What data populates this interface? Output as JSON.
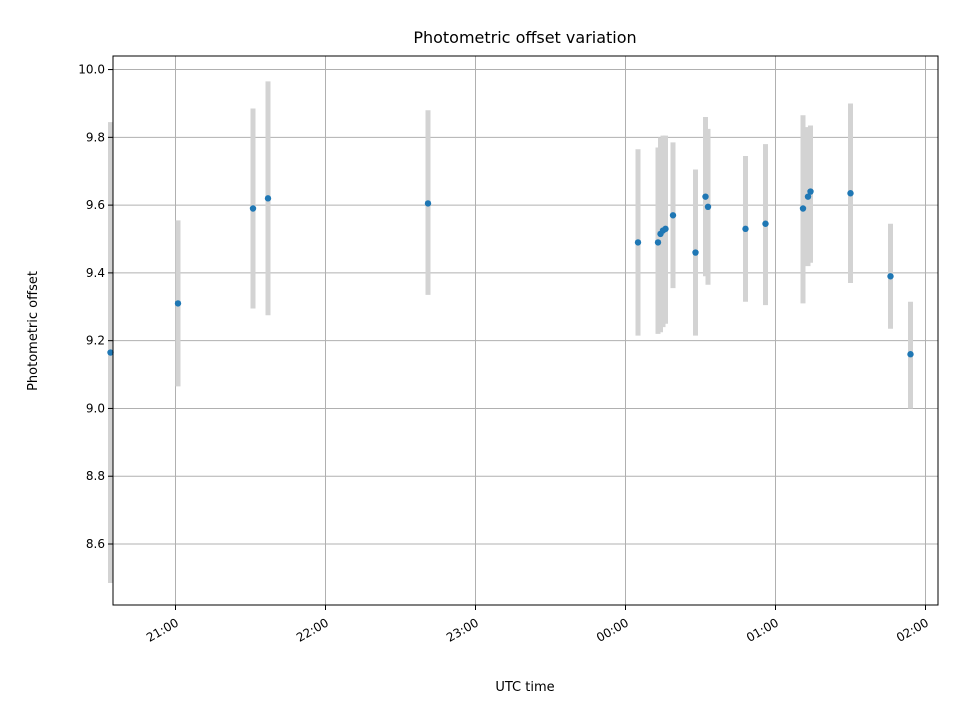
{
  "chart_data": {
    "type": "scatter",
    "title": "Photometric offset variation",
    "xlabel": "UTC time",
    "ylabel": "Photometric offset",
    "xlim": [
      "20:35",
      "02:05"
    ],
    "ylim": [
      8.42,
      10.04
    ],
    "grid": true,
    "x_ticks": [
      "21:00",
      "22:00",
      "23:00",
      "00:00",
      "01:00",
      "02:00"
    ],
    "y_ticks": [
      8.6,
      8.8,
      9.0,
      9.2,
      9.4,
      9.6,
      9.8,
      10.0
    ],
    "point_color": "#1f77b4",
    "errorbar_color": "#d3d3d3",
    "points": [
      {
        "t": "20:34",
        "y": 9.165,
        "ylow": 8.485,
        "yhigh": 9.845
      },
      {
        "t": "21:01",
        "y": 9.31,
        "ylow": 9.065,
        "yhigh": 9.555
      },
      {
        "t": "21:31",
        "y": 9.59,
        "ylow": 9.295,
        "yhigh": 9.885
      },
      {
        "t": "21:37",
        "y": 9.62,
        "ylow": 9.275,
        "yhigh": 9.965
      },
      {
        "t": "22:41",
        "y": 9.605,
        "ylow": 9.335,
        "yhigh": 9.88
      },
      {
        "t": "00:05",
        "y": 9.49,
        "ylow": 9.215,
        "yhigh": 9.765
      },
      {
        "t": "00:13",
        "y": 9.49,
        "ylow": 9.22,
        "yhigh": 9.77
      },
      {
        "t": "00:14",
        "y": 9.515,
        "ylow": 9.225,
        "yhigh": 9.8
      },
      {
        "t": "00:15",
        "y": 9.525,
        "ylow": 9.24,
        "yhigh": 9.805
      },
      {
        "t": "00:16",
        "y": 9.53,
        "ylow": 9.25,
        "yhigh": 9.805
      },
      {
        "t": "00:19",
        "y": 9.57,
        "ylow": 9.355,
        "yhigh": 9.785
      },
      {
        "t": "00:28",
        "y": 9.46,
        "ylow": 9.215,
        "yhigh": 9.705
      },
      {
        "t": "00:32",
        "y": 9.625,
        "ylow": 9.39,
        "yhigh": 9.86
      },
      {
        "t": "00:33",
        "y": 9.595,
        "ylow": 9.365,
        "yhigh": 9.825
      },
      {
        "t": "00:48",
        "y": 9.53,
        "ylow": 9.315,
        "yhigh": 9.745
      },
      {
        "t": "00:56",
        "y": 9.545,
        "ylow": 9.305,
        "yhigh": 9.78
      },
      {
        "t": "01:11",
        "y": 9.59,
        "ylow": 9.31,
        "yhigh": 9.865
      },
      {
        "t": "01:13",
        "y": 9.625,
        "ylow": 9.42,
        "yhigh": 9.83
      },
      {
        "t": "01:14",
        "y": 9.64,
        "ylow": 9.43,
        "yhigh": 9.835
      },
      {
        "t": "01:30",
        "y": 9.635,
        "ylow": 9.37,
        "yhigh": 9.9
      },
      {
        "t": "01:46",
        "y": 9.39,
        "ylow": 9.235,
        "yhigh": 9.545
      },
      {
        "t": "01:54",
        "y": 9.16,
        "ylow": 9.0,
        "yhigh": 9.315
      }
    ]
  }
}
